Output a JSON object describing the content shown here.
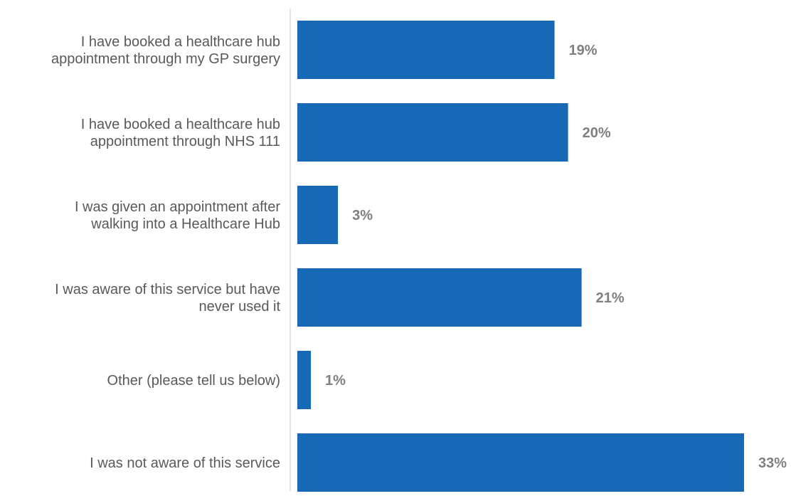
{
  "chart_data": {
    "type": "bar",
    "orientation": "horizontal",
    "categories": [
      [
        "I have booked a healthcare hub",
        "appointment through my GP surgery"
      ],
      [
        "I have booked a healthcare hub",
        "appointment through NHS 111"
      ],
      [
        "I was given an appointment after",
        "walking into a Healthcare Hub"
      ],
      [
        "I was aware of this service but have",
        "never used it"
      ],
      [
        "Other (please tell us below)"
      ],
      [
        "I was not aware of this service"
      ]
    ],
    "values": [
      19,
      20,
      3,
      21,
      1,
      33
    ],
    "value_labels": [
      "19%",
      "20%",
      "3%",
      "21%",
      "1%",
      "33%"
    ],
    "xlim": [
      0,
      33
    ],
    "grid": false,
    "legend": "none",
    "colors": {
      "bar": "#1769b5",
      "axis": "#d9d9d9",
      "category_text": "#595959",
      "value_text": "#7f7f7f"
    }
  }
}
